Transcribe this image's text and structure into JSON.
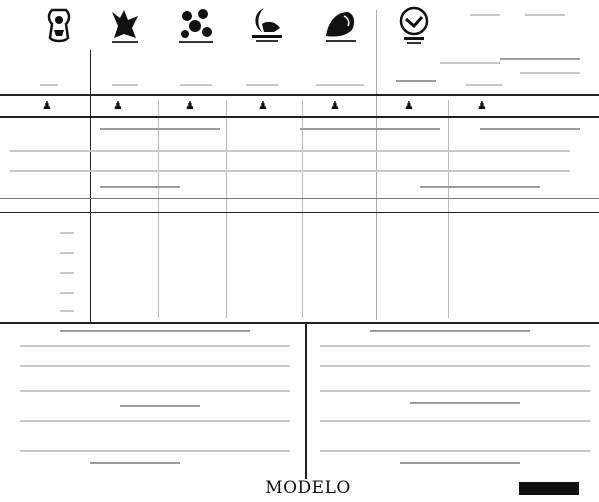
{
  "document": {
    "footer_title": "MODELO"
  },
  "logos": [
    {
      "name": "party-logo-1-icon"
    },
    {
      "name": "party-logo-2-icon"
    },
    {
      "name": "party-logo-3-icon"
    },
    {
      "name": "party-logo-4-icon"
    },
    {
      "name": "party-logo-5-icon"
    },
    {
      "name": "party-logo-6-icon"
    }
  ]
}
